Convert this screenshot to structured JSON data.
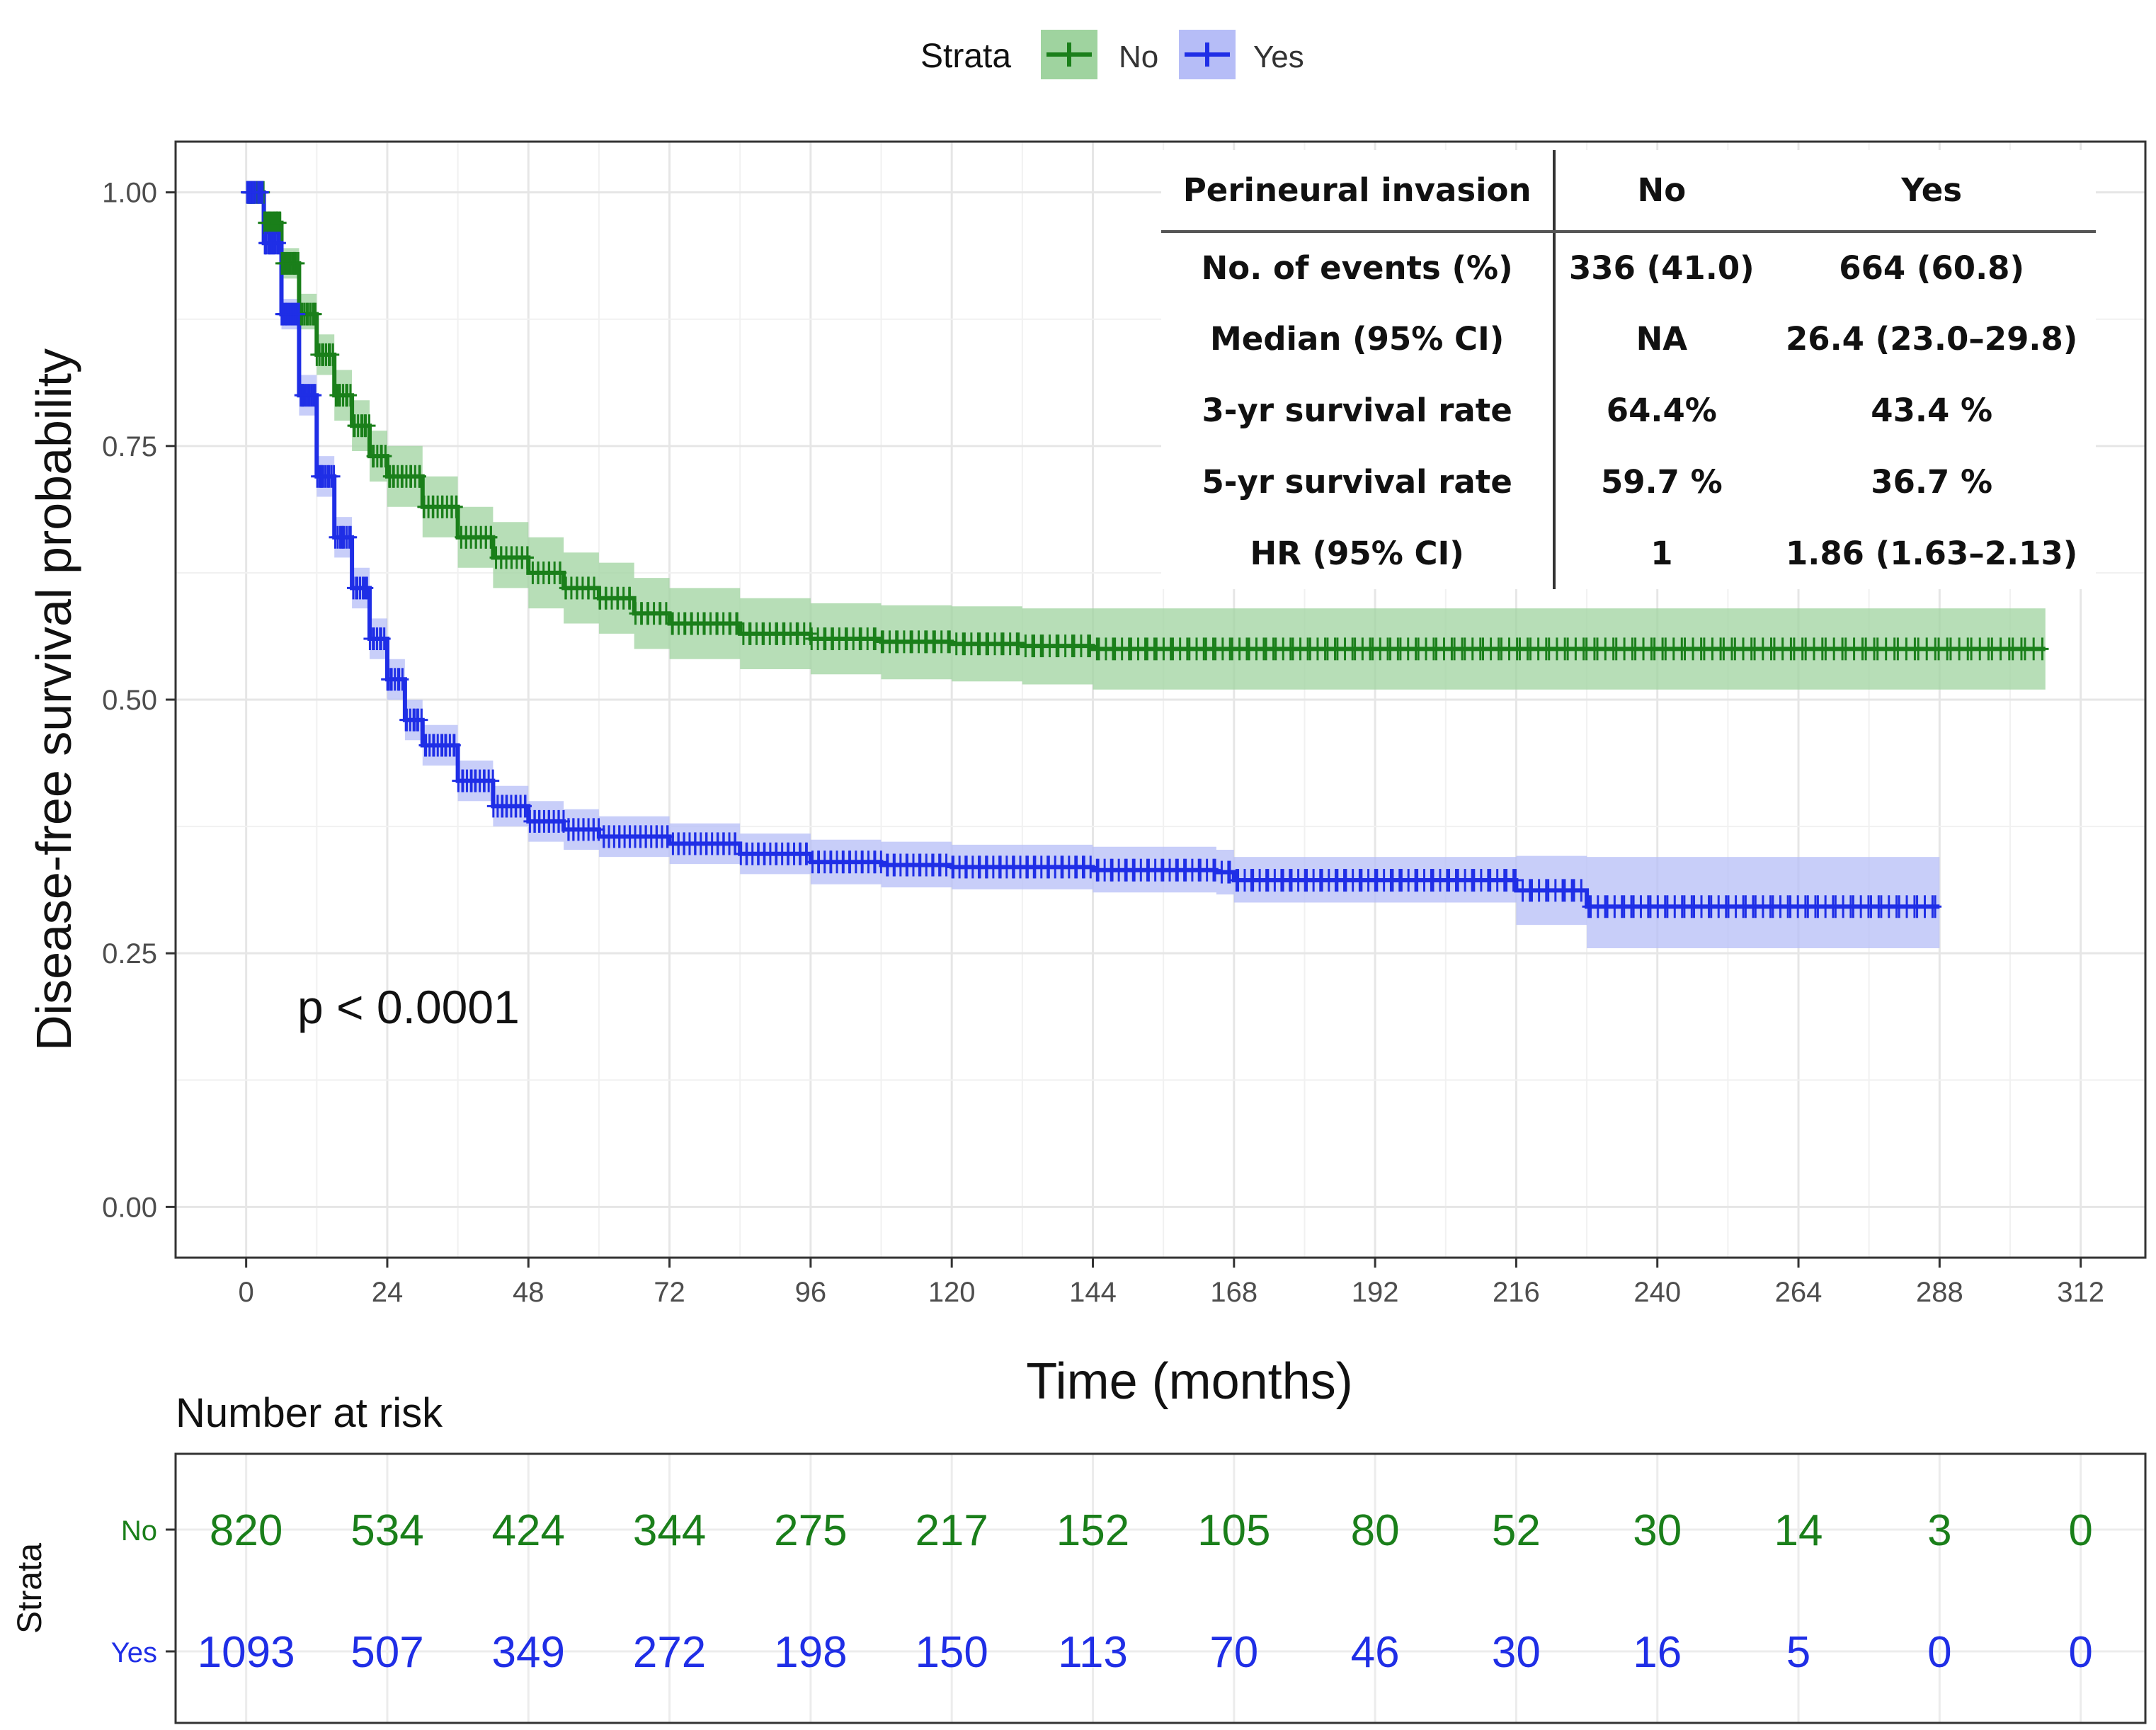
{
  "chart_data": {
    "type": "line",
    "legend": {
      "title": "Strata",
      "position": "top",
      "entries": [
        {
          "label": "No",
          "color": "#1a7f1a"
        },
        {
          "label": "Yes",
          "color": "#1f2ee6"
        }
      ]
    },
    "xlabel": "Time (months)",
    "ylabel": "Disease-free survival probability",
    "xlim": [
      -12,
      323
    ],
    "ylim": [
      -0.05,
      1.05
    ],
    "x_ticks": [
      0,
      24,
      48,
      72,
      96,
      120,
      144,
      168,
      192,
      216,
      240,
      264,
      288,
      312
    ],
    "y_ticks": [
      0.0,
      0.25,
      0.5,
      0.75,
      1.0
    ],
    "y_tick_labels": [
      "0.00",
      "0.25",
      "0.50",
      "0.75",
      "1.00"
    ],
    "grid": true,
    "annotation": "p < 0.0001",
    "series": [
      {
        "name": "No",
        "color": "#1a7f1a",
        "band_color": "#9fd39f",
        "x": [
          0,
          3,
          6,
          9,
          12,
          15,
          18,
          21,
          24,
          30,
          36,
          42,
          48,
          54,
          60,
          66,
          72,
          84,
          96,
          108,
          120,
          132,
          144,
          168,
          192,
          216,
          240,
          264,
          288,
          306
        ],
        "y": [
          1.0,
          0.97,
          0.93,
          0.88,
          0.84,
          0.8,
          0.77,
          0.74,
          0.72,
          0.69,
          0.66,
          0.64,
          0.625,
          0.61,
          0.6,
          0.585,
          0.575,
          0.565,
          0.56,
          0.557,
          0.555,
          0.553,
          0.55,
          0.55,
          0.55,
          0.55,
          0.55,
          0.55,
          0.55,
          0.55
        ],
        "lower": [
          1.0,
          0.96,
          0.915,
          0.865,
          0.82,
          0.775,
          0.745,
          0.715,
          0.69,
          0.66,
          0.63,
          0.61,
          0.59,
          0.575,
          0.565,
          0.55,
          0.54,
          0.53,
          0.525,
          0.52,
          0.518,
          0.515,
          0.51,
          0.51,
          0.51,
          0.51,
          0.51,
          0.51,
          0.51,
          0.51
        ],
        "upper": [
          1.0,
          0.98,
          0.945,
          0.9,
          0.86,
          0.825,
          0.795,
          0.765,
          0.75,
          0.72,
          0.69,
          0.675,
          0.66,
          0.645,
          0.635,
          0.62,
          0.61,
          0.6,
          0.595,
          0.593,
          0.592,
          0.59,
          0.59,
          0.59,
          0.59,
          0.59,
          0.59,
          0.59,
          0.59,
          0.59
        ],
        "risk_table": [
          820,
          534,
          424,
          344,
          275,
          217,
          152,
          105,
          80,
          52,
          30,
          14,
          3,
          0
        ]
      },
      {
        "name": "Yes",
        "color": "#1f2ee6",
        "band_color": "#b6bdf7",
        "x": [
          0,
          3,
          6,
          9,
          12,
          15,
          18,
          21,
          24,
          27,
          30,
          36,
          42,
          48,
          54,
          60,
          72,
          84,
          96,
          108,
          120,
          144,
          165,
          168,
          200,
          214,
          216,
          226,
          228,
          250,
          288
        ],
        "y": [
          1.0,
          0.95,
          0.88,
          0.8,
          0.72,
          0.66,
          0.61,
          0.56,
          0.52,
          0.48,
          0.455,
          0.42,
          0.395,
          0.38,
          0.372,
          0.365,
          0.358,
          0.348,
          0.34,
          0.337,
          0.335,
          0.332,
          0.33,
          0.322,
          0.322,
          0.322,
          0.312,
          0.312,
          0.296,
          0.296,
          0.296
        ],
        "lower": [
          1.0,
          0.94,
          0.865,
          0.78,
          0.7,
          0.64,
          0.59,
          0.54,
          0.5,
          0.46,
          0.435,
          0.4,
          0.375,
          0.36,
          0.352,
          0.345,
          0.338,
          0.328,
          0.318,
          0.315,
          0.313,
          0.31,
          0.308,
          0.3,
          0.3,
          0.3,
          0.278,
          0.278,
          0.255,
          0.255,
          0.255
        ],
        "upper": [
          1.0,
          0.96,
          0.895,
          0.82,
          0.74,
          0.68,
          0.63,
          0.58,
          0.54,
          0.5,
          0.475,
          0.44,
          0.415,
          0.4,
          0.392,
          0.385,
          0.378,
          0.368,
          0.362,
          0.36,
          0.357,
          0.355,
          0.352,
          0.345,
          0.345,
          0.345,
          0.346,
          0.346,
          0.345,
          0.345,
          0.345
        ],
        "risk_table": [
          1093,
          507,
          349,
          272,
          198,
          150,
          113,
          70,
          46,
          30,
          16,
          5,
          0,
          0
        ]
      }
    ],
    "risk_table": {
      "title": "Number at risk",
      "ylabel": "Strata",
      "times": [
        0,
        24,
        48,
        72,
        96,
        120,
        144,
        168,
        192,
        216,
        240,
        264,
        288,
        312
      ]
    }
  },
  "summary_table": {
    "headers": [
      "Perineural invasion",
      "No",
      "Yes"
    ],
    "rows": [
      [
        "No. of events (%)",
        "336 (41.0)",
        "664 (60.8)"
      ],
      [
        "Median (95% CI)",
        "NA",
        "26.4 (23.0–29.8)"
      ],
      [
        "3-yr survival rate",
        "64.4%",
        "43.4 %"
      ],
      [
        "5-yr survival rate",
        "59.7 %",
        "36.7 %"
      ],
      [
        "HR (95% CI)",
        "1",
        "1.86 (1.63–2.13)"
      ]
    ]
  }
}
